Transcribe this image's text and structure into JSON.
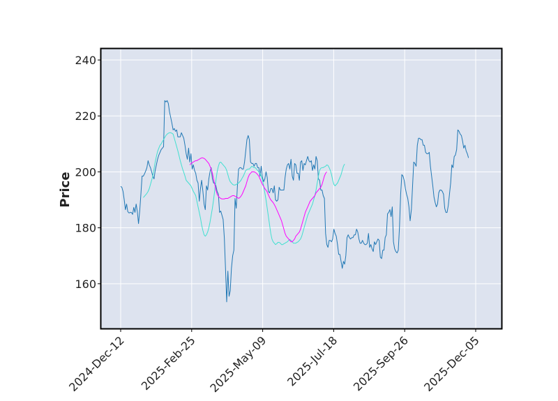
{
  "chart_data": {
    "type": "line",
    "ylabel": "Price",
    "xlabel": "",
    "ylim": [
      144,
      244
    ],
    "x_ticks": [
      "2024-Dec-12",
      "2025-Feb-25",
      "2025-May-09",
      "2025-Jul-18",
      "2025-Sep-26",
      "2025-Dec-05"
    ],
    "y_ticks": [
      160,
      180,
      200,
      220,
      240
    ],
    "grid": true,
    "series": [
      {
        "color": "#1f77b4",
        "values": [
          194.8,
          194.5,
          193.0,
          190.0,
          186.5,
          188.5,
          185.8,
          185.3,
          185.5,
          185.5,
          184.8,
          187.3,
          185.5,
          188.5,
          185.8,
          181.5,
          186.0,
          192.0,
          198.5,
          198.5,
          199.3,
          200.3,
          201.5,
          204.0,
          202.5,
          201.5,
          200.0,
          198.5,
          197.5,
          200.5,
          202.5,
          204.5,
          206.0,
          207.0,
          208.0,
          208.5,
          209.0,
          225.5,
          225.0,
          225.5,
          224.5,
          221.5,
          219.5,
          217.5,
          215.0,
          215.5,
          214.5,
          215.0,
          212.5,
          212.5,
          212.5,
          214.0,
          213.0,
          212.0,
          209.5,
          206.5,
          204.5,
          208.5,
          203.5,
          206.5,
          201.0,
          202.5,
          200.5,
          199.5,
          197.0,
          196.0,
          189.5,
          194.0,
          197.0,
          193.0,
          188.5,
          186.5,
          195.0,
          193.5,
          197.5,
          200.0,
          201.5,
          197.5,
          196.0,
          196.0,
          195.0,
          193.0,
          192.0,
          185.5,
          186.0,
          184.5,
          183.0,
          176.5,
          165.5,
          153.5,
          164.5,
          155.5,
          157.5,
          165.5,
          170.0,
          172.0,
          190.5,
          187.0,
          195.0,
          201.0,
          201.5,
          201.5,
          201.0,
          201.0,
          203.5,
          207.5,
          211.5,
          213.0,
          211.5,
          203.5,
          203.0,
          203.0,
          202.0,
          203.0,
          203.0,
          201.5,
          201.5,
          198.5,
          202.0,
          198.0,
          196.5,
          197.5,
          200.0,
          198.0,
          193.0,
          192.5,
          194.0,
          194.0,
          192.5,
          195.0,
          190.0,
          189.5,
          190.0,
          194.5,
          193.5,
          193.5,
          193.5,
          193.5,
          198.0,
          201.0,
          202.5,
          203.0,
          201.0,
          204.5,
          198.5,
          197.0,
          203.0,
          202.5,
          199.5,
          199.5,
          197.0,
          203.5,
          204.0,
          200.5,
          203.0,
          202.5,
          204.0,
          205.5,
          204.0,
          203.5,
          204.0,
          200.5,
          202.5,
          201.0,
          205.5,
          204.0,
          197.5,
          197.0,
          193.5,
          193.5,
          191.5,
          190.5,
          178.0,
          174.0,
          173.0,
          175.5,
          175.5,
          175.0,
          176.0,
          179.5,
          178.0,
          177.0,
          174.0,
          170.5,
          170.5,
          168.0,
          165.5,
          168.0,
          167.0,
          170.0,
          176.5,
          177.5,
          176.5,
          176.0,
          176.5,
          176.5,
          177.5,
          177.5,
          179.5,
          178.5,
          176.0,
          174.5,
          174.5,
          175.5,
          174.5,
          174.0,
          174.0,
          174.5,
          178.0,
          173.0,
          174.0,
          172.5,
          171.5,
          175.0,
          174.0,
          175.0,
          176.0,
          175.5,
          169.5,
          169.0,
          172.0,
          172.0,
          176.5,
          177.5,
          185.0,
          185.5,
          186.5,
          184.0,
          187.5,
          175.0,
          172.5,
          171.5,
          171.0,
          172.0,
          180.0,
          192.0,
          199.0,
          198.5,
          197.0,
          194.0,
          192.0,
          190.5,
          187.5,
          182.5,
          186.5,
          195.0,
          203.5,
          203.0,
          202.0,
          209.5,
          212.0,
          212.0,
          211.5,
          211.5,
          209.5,
          209.5,
          207.0,
          206.5,
          206.5,
          207.0,
          202.0,
          198.5,
          195.0,
          191.0,
          189.0,
          187.5,
          188.5,
          192.5,
          193.5,
          193.5,
          193.0,
          192.0,
          187.0,
          185.5,
          185.5,
          188.0,
          192.0,
          196.0,
          202.5,
          201.5,
          205.5,
          206.0,
          208.0,
          215.0,
          214.5,
          213.5,
          213.0,
          211.0,
          208.5,
          209.5,
          207.5,
          206.5,
          205.0
        ]
      },
      {
        "color": "#40e0d0",
        "start_index": 19,
        "values": [
          190.8,
          191.3,
          191.8,
          192.3,
          193.0,
          194.0,
          195.5,
          197.0,
          198.5,
          201.0,
          203.5,
          205.5,
          207.3,
          208.5,
          209.5,
          210.0,
          210.8,
          211.5,
          212.3,
          213.0,
          213.5,
          213.8,
          214.0,
          214.0,
          213.8,
          213.5,
          212.0,
          210.5,
          209.0,
          207.5,
          205.8,
          204.0,
          202.5,
          201.0,
          199.8,
          198.5,
          197.0,
          196.5,
          196.0,
          195.5,
          195.0,
          194.0,
          193.0,
          192.3,
          191.5,
          189.5,
          187.5,
          185.5,
          183.5,
          181.0,
          179.0,
          177.5,
          177.0,
          177.5,
          178.5,
          180.0,
          182.0,
          184.5,
          187.0,
          190.0,
          193.5,
          197.0,
          200.0,
          202.0,
          203.3,
          203.5,
          203.0,
          202.5,
          202.0,
          201.5,
          200.5,
          199.0,
          197.5,
          196.5,
          196.0,
          195.5,
          195.3,
          195.3,
          195.5,
          195.8,
          196.0,
          196.5,
          197.0,
          197.8,
          198.5,
          199.5,
          200.5,
          200.8,
          201.0,
          201.0,
          201.5,
          202.0,
          201.8,
          201.5,
          201.5,
          201.0,
          200.5,
          200.0,
          199.5,
          198.5,
          197.0,
          195.0,
          192.5,
          190.0,
          187.0,
          184.0,
          181.0,
          178.0,
          176.0,
          175.0,
          174.5,
          174.0,
          174.3,
          174.8,
          174.8,
          174.5,
          174.0,
          174.0,
          174.3,
          174.5,
          174.8,
          175.0,
          175.5,
          175.8,
          175.5,
          175.0,
          174.5,
          174.5,
          174.5,
          174.8,
          175.0,
          175.5,
          176.0,
          177.0,
          178.5,
          180.0,
          181.5,
          183.0,
          184.5,
          185.5,
          186.5,
          187.5,
          188.5,
          190.0,
          191.5,
          193.5,
          196.0,
          198.5,
          200.5,
          201.3,
          201.5,
          201.5,
          201.8,
          202.0,
          202.5,
          202.3,
          201.5,
          200.5,
          199.0,
          197.0,
          195.5,
          195.0,
          195.5,
          196.0,
          197.0,
          198.0,
          199.0,
          200.5,
          202.0,
          202.8
        ]
      },
      {
        "color": "#ff00ff",
        "start_index": 58,
        "values": [
          202.5,
          203.0,
          203.3,
          203.5,
          203.8,
          204.0,
          204.0,
          204.3,
          204.5,
          204.8,
          205.0,
          205.0,
          204.8,
          204.5,
          204.0,
          203.5,
          203.0,
          202.0,
          201.0,
          199.5,
          197.5,
          195.5,
          193.5,
          192.0,
          191.3,
          190.8,
          190.5,
          190.3,
          190.3,
          190.3,
          190.5,
          190.5,
          190.5,
          190.8,
          191.0,
          191.3,
          191.5,
          191.5,
          191.3,
          191.0,
          190.8,
          190.5,
          190.8,
          191.3,
          192.0,
          193.0,
          194.0,
          195.0,
          196.5,
          198.0,
          199.0,
          199.5,
          200.0,
          200.0,
          200.0,
          199.8,
          199.5,
          199.0,
          198.5,
          197.5,
          196.5,
          195.5,
          194.8,
          194.0,
          193.5,
          192.8,
          191.8,
          190.8,
          190.0,
          189.5,
          189.0,
          188.3,
          187.5,
          186.5,
          185.5,
          184.5,
          183.5,
          182.5,
          181.0,
          179.5,
          178.0,
          177.0,
          176.5,
          176.0,
          175.5,
          175.0,
          175.0,
          175.5,
          176.0,
          177.0,
          177.5,
          178.0,
          178.5,
          179.5,
          181.0,
          182.5,
          184.0,
          185.5,
          186.5,
          187.5,
          188.5,
          189.5,
          190.0,
          190.5,
          191.0,
          191.5,
          192.5,
          193.0,
          193.5,
          194.0,
          194.5,
          195.5,
          197.0,
          198.5,
          199.5,
          200.0
        ]
      }
    ]
  }
}
